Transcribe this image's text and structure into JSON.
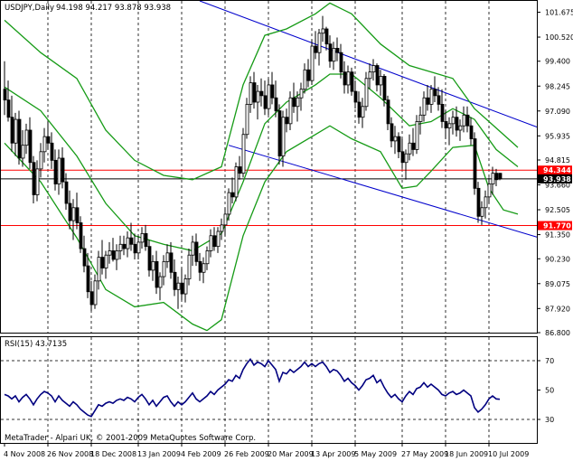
{
  "header": {
    "symbol_text": "USDJPY,Daily",
    "ohlc_text": "94.198 94.217 93.878 93.938"
  },
  "rsi_header": {
    "label": "RSI(15) 43.7135"
  },
  "footer": {
    "copyright": "MetaTrader - Alpari UK, © 2001-2009 MetaQuotes Software Corp."
  },
  "colors": {
    "background": "#ffffff",
    "candle": "#000000",
    "bollinger": "#169b16",
    "channel": "#0000cc",
    "horizontal_lines": "#ff0000",
    "current_price_line": "#000000",
    "rsi_line": "#000080",
    "price_label_red": "#ff0000",
    "price_label_black": "#000000",
    "grid": "#000000"
  },
  "chart_data": [
    {
      "type": "candlestick",
      "title": "USDJPY,Daily",
      "symbol": "USDJPY",
      "timeframe": "Daily",
      "ohlc_last": {
        "open": 94.198,
        "high": 94.217,
        "low": 93.878,
        "close": 93.938
      },
      "y_ticks": [
        "101.675",
        "100.520",
        "99.400",
        "98.245",
        "97.090",
        "95.935",
        "94.815",
        "93.660",
        "92.505",
        "91.350",
        "90.230",
        "89.075",
        "87.920",
        "86.800"
      ],
      "ylim": [
        86.8,
        102.2
      ],
      "x_ticks": [
        "4 Nov 2008",
        "26 Nov 2008",
        "18 Dec 2008",
        "13 Jan 2009",
        "4 Feb 2009",
        "26 Feb 2009",
        "20 Mar 2009",
        "13 Apr 2009",
        "5 May 2009",
        "27 May 2009",
        "18 Jun 2009",
        "10 Jul 2009"
      ],
      "candles": [
        [
          98.1,
          99.4,
          96.9,
          97.6
        ],
        [
          97.6,
          98.5,
          96.6,
          96.8
        ],
        [
          96.8,
          97.8,
          95.2,
          95.6
        ],
        [
          95.6,
          97.0,
          95.0,
          96.7
        ],
        [
          96.7,
          97.1,
          94.6,
          94.9
        ],
        [
          94.9,
          96.2,
          94.5,
          95.5
        ],
        [
          95.5,
          96.5,
          95.1,
          96.2
        ],
        [
          96.2,
          96.8,
          94.4,
          94.7
        ],
        [
          94.7,
          95.0,
          92.8,
          93.2
        ],
        [
          93.2,
          94.8,
          92.9,
          94.4
        ],
        [
          94.4,
          95.6,
          94.0,
          95.2
        ],
        [
          95.2,
          96.3,
          94.7,
          95.9
        ],
        [
          95.9,
          96.6,
          95.3,
          95.6
        ],
        [
          95.6,
          96.1,
          94.4,
          94.8
        ],
        [
          94.8,
          95.3,
          93.4,
          93.7
        ],
        [
          93.7,
          95.3,
          93.2,
          94.9
        ],
        [
          94.9,
          95.4,
          93.5,
          93.8
        ],
        [
          93.8,
          94.2,
          92.5,
          92.8
        ],
        [
          92.8,
          93.4,
          91.6,
          92.0
        ],
        [
          92.0,
          93.0,
          91.1,
          92.6
        ],
        [
          92.6,
          93.3,
          91.6,
          91.9
        ],
        [
          91.9,
          92.2,
          90.5,
          90.7
        ],
        [
          90.7,
          91.3,
          89.6,
          89.9
        ],
        [
          89.9,
          90.5,
          88.4,
          88.7
        ],
        [
          88.7,
          89.2,
          87.8,
          88.1
        ],
        [
          88.1,
          89.5,
          87.9,
          89.2
        ],
        [
          89.2,
          90.6,
          88.8,
          90.3
        ],
        [
          90.3,
          91.1,
          89.5,
          89.8
        ],
        [
          89.8,
          90.6,
          89.3,
          90.4
        ],
        [
          90.4,
          91.0,
          90.0,
          90.6
        ],
        [
          90.6,
          91.2,
          90.1,
          90.2
        ],
        [
          90.2,
          90.9,
          89.7,
          90.6
        ],
        [
          90.6,
          91.3,
          90.2,
          90.9
        ],
        [
          90.9,
          91.3,
          90.4,
          90.7
        ],
        [
          90.7,
          91.5,
          90.3,
          91.2
        ],
        [
          91.2,
          91.9,
          90.6,
          90.9
        ],
        [
          90.9,
          91.4,
          90.2,
          90.5
        ],
        [
          90.5,
          91.3,
          90.2,
          91.0
        ],
        [
          91.0,
          91.7,
          90.7,
          91.4
        ],
        [
          91.4,
          91.8,
          90.6,
          90.8
        ],
        [
          90.8,
          91.1,
          89.4,
          89.7
        ],
        [
          89.7,
          90.4,
          89.2,
          90.1
        ],
        [
          90.1,
          90.6,
          88.6,
          88.9
        ],
        [
          88.9,
          89.6,
          88.3,
          89.4
        ],
        [
          89.4,
          90.4,
          89.0,
          90.1
        ],
        [
          90.1,
          90.9,
          89.8,
          90.5
        ],
        [
          90.5,
          91.0,
          89.3,
          89.6
        ],
        [
          89.6,
          90.2,
          88.5,
          88.8
        ],
        [
          88.8,
          89.4,
          87.9,
          89.1
        ],
        [
          89.1,
          89.8,
          88.3,
          88.6
        ],
        [
          88.6,
          89.5,
          88.2,
          89.3
        ],
        [
          89.3,
          90.7,
          89.0,
          90.4
        ],
        [
          90.4,
          91.3,
          89.9,
          91.0
        ],
        [
          91.0,
          91.4,
          89.9,
          90.1
        ],
        [
          90.1,
          90.5,
          89.2,
          89.6
        ],
        [
          89.6,
          90.3,
          89.1,
          90.0
        ],
        [
          90.0,
          90.8,
          89.7,
          90.6
        ],
        [
          90.6,
          91.6,
          90.3,
          91.3
        ],
        [
          91.3,
          91.7,
          90.6,
          90.8
        ],
        [
          90.8,
          91.7,
          90.5,
          91.5
        ],
        [
          91.5,
          92.1,
          91.1,
          91.8
        ],
        [
          91.8,
          92.6,
          91.3,
          92.3
        ],
        [
          92.3,
          93.5,
          92.0,
          93.3
        ],
        [
          93.3,
          94.0,
          92.8,
          93.1
        ],
        [
          93.1,
          94.7,
          92.9,
          94.5
        ],
        [
          94.5,
          95.0,
          93.9,
          94.2
        ],
        [
          94.2,
          96.3,
          94.0,
          96.0
        ],
        [
          96.0,
          97.7,
          95.8,
          97.4
        ],
        [
          97.4,
          98.7,
          97.0,
          98.4
        ],
        [
          98.4,
          98.9,
          97.2,
          97.5
        ],
        [
          97.5,
          98.3,
          96.7,
          98.0
        ],
        [
          98.0,
          98.6,
          97.3,
          97.8
        ],
        [
          97.8,
          98.5,
          96.9,
          97.2
        ],
        [
          97.2,
          98.6,
          96.9,
          98.3
        ],
        [
          98.3,
          98.9,
          97.4,
          97.7
        ],
        [
          97.7,
          98.5,
          96.8,
          97.1
        ],
        [
          97.1,
          97.4,
          94.6,
          95.0
        ],
        [
          95.0,
          97.1,
          94.5,
          96.8
        ],
        [
          96.8,
          97.2,
          96.1,
          96.5
        ],
        [
          96.5,
          98.0,
          96.2,
          97.7
        ],
        [
          97.7,
          98.4,
          97.0,
          97.3
        ],
        [
          97.3,
          98.0,
          96.6,
          97.7
        ],
        [
          97.7,
          98.4,
          97.1,
          98.1
        ],
        [
          98.1,
          99.3,
          97.9,
          99.0
        ],
        [
          99.0,
          99.5,
          98.2,
          98.5
        ],
        [
          98.5,
          100.4,
          98.3,
          100.1
        ],
        [
          100.1,
          100.8,
          99.5,
          99.8
        ],
        [
          99.8,
          100.9,
          99.2,
          100.7
        ],
        [
          100.7,
          101.5,
          100.3,
          100.9
        ],
        [
          100.9,
          101.0,
          99.9,
          100.2
        ],
        [
          100.2,
          100.6,
          99.1,
          99.4
        ],
        [
          99.4,
          100.3,
          99.0,
          100.0
        ],
        [
          100.0,
          100.5,
          99.4,
          99.8
        ],
        [
          99.8,
          100.2,
          98.6,
          98.9
        ],
        [
          98.9,
          99.4,
          97.9,
          98.3
        ],
        [
          98.3,
          99.2,
          97.9,
          98.9
        ],
        [
          98.9,
          99.1,
          97.8,
          98.0
        ],
        [
          98.0,
          98.5,
          97.2,
          97.5
        ],
        [
          97.5,
          98.0,
          96.5,
          96.8
        ],
        [
          96.8,
          97.7,
          96.3,
          97.3
        ],
        [
          97.3,
          98.9,
          97.1,
          98.6
        ],
        [
          98.6,
          99.3,
          98.1,
          98.9
        ],
        [
          98.9,
          99.5,
          98.5,
          99.2
        ],
        [
          99.2,
          99.3,
          98.0,
          98.3
        ],
        [
          98.3,
          99.0,
          97.8,
          98.7
        ],
        [
          98.7,
          98.8,
          97.3,
          97.6
        ],
        [
          97.6,
          97.8,
          96.2,
          96.5
        ],
        [
          96.5,
          96.8,
          95.4,
          95.7
        ],
        [
          95.7,
          96.4,
          95.1,
          95.9
        ],
        [
          95.9,
          96.1,
          94.9,
          95.2
        ],
        [
          95.2,
          95.8,
          94.4,
          94.7
        ],
        [
          94.7,
          95.3,
          93.9,
          95.1
        ],
        [
          95.1,
          96.0,
          94.8,
          95.6
        ],
        [
          95.6,
          96.3,
          95.0,
          95.3
        ],
        [
          95.3,
          96.9,
          95.1,
          96.6
        ],
        [
          96.6,
          97.3,
          96.0,
          96.9
        ],
        [
          96.9,
          98.0,
          96.6,
          97.7
        ],
        [
          97.7,
          98.3,
          97.1,
          97.4
        ],
        [
          97.4,
          98.3,
          97.0,
          98.1
        ],
        [
          98.1,
          98.7,
          97.5,
          97.8
        ],
        [
          97.8,
          98.2,
          97.1,
          97.4
        ],
        [
          97.4,
          98.1,
          96.3,
          96.6
        ],
        [
          96.6,
          97.1,
          95.8,
          96.3
        ],
        [
          96.3,
          96.8,
          95.5,
          96.5
        ],
        [
          96.5,
          97.1,
          96.0,
          96.8
        ],
        [
          96.8,
          97.3,
          95.9,
          96.2
        ],
        [
          96.2,
          96.7,
          95.7,
          96.4
        ],
        [
          96.4,
          97.3,
          96.1,
          96.9
        ],
        [
          96.9,
          97.3,
          96.1,
          96.4
        ],
        [
          96.4,
          96.8,
          95.5,
          95.8
        ],
        [
          95.8,
          96.1,
          93.2,
          93.5
        ],
        [
          93.5,
          93.8,
          91.9,
          92.2
        ],
        [
          92.2,
          92.9,
          91.8,
          92.6
        ],
        [
          92.6,
          93.4,
          92.1,
          93.1
        ],
        [
          93.1,
          94.0,
          92.8,
          93.7
        ],
        [
          93.7,
          94.5,
          93.2,
          94.2
        ],
        [
          94.2,
          94.4,
          93.6,
          93.9
        ],
        [
          94.198,
          94.217,
          93.878,
          93.938
        ]
      ],
      "bollinger_upper": [
        [
          0,
          101.3
        ],
        [
          10,
          99.8
        ],
        [
          20,
          98.6
        ],
        [
          28,
          96.2
        ],
        [
          36,
          94.8
        ],
        [
          44,
          94.1
        ],
        [
          52,
          93.9
        ],
        [
          60,
          94.5
        ],
        [
          66,
          98.3
        ],
        [
          72,
          100.6
        ],
        [
          78,
          100.9
        ],
        [
          86,
          101.6
        ],
        [
          90,
          102.1
        ],
        [
          96,
          101.6
        ],
        [
          104,
          100.2
        ],
        [
          112,
          99.2
        ],
        [
          118,
          98.9
        ],
        [
          124,
          98.6
        ],
        [
          130,
          97.2
        ],
        [
          136,
          96.3
        ],
        [
          142,
          95.4
        ]
      ],
      "bollinger_middle": [
        [
          0,
          98.2
        ],
        [
          10,
          97.1
        ],
        [
          20,
          95.0
        ],
        [
          28,
          92.8
        ],
        [
          36,
          91.3
        ],
        [
          44,
          90.9
        ],
        [
          52,
          90.6
        ],
        [
          60,
          91.4
        ],
        [
          66,
          93.8
        ],
        [
          72,
          96.5
        ],
        [
          78,
          97.5
        ],
        [
          86,
          98.3
        ],
        [
          90,
          98.8
        ],
        [
          96,
          98.8
        ],
        [
          104,
          97.7
        ],
        [
          112,
          96.4
        ],
        [
          118,
          96.6
        ],
        [
          124,
          97.2
        ],
        [
          130,
          96.7
        ],
        [
          136,
          95.3
        ],
        [
          142,
          94.5
        ]
      ],
      "bollinger_lower": [
        [
          0,
          95.6
        ],
        [
          10,
          93.8
        ],
        [
          20,
          91.2
        ],
        [
          28,
          88.8
        ],
        [
          36,
          88.0
        ],
        [
          44,
          88.2
        ],
        [
          52,
          87.2
        ],
        [
          56,
          86.9
        ],
        [
          60,
          87.4
        ],
        [
          66,
          91.3
        ],
        [
          72,
          93.8
        ],
        [
          78,
          95.2
        ],
        [
          86,
          96.0
        ],
        [
          90,
          96.4
        ],
        [
          96,
          95.8
        ],
        [
          104,
          95.2
        ],
        [
          110,
          93.5
        ],
        [
          114,
          93.6
        ],
        [
          118,
          94.3
        ],
        [
          124,
          95.4
        ],
        [
          130,
          95.5
        ],
        [
          134,
          93.5
        ],
        [
          138,
          92.5
        ],
        [
          142,
          92.3
        ]
      ],
      "channel_lines": [
        {
          "from": [
            54,
            102.2
          ],
          "to": [
            144,
            96.55
          ]
        },
        {
          "from": [
            62,
            95.5
          ],
          "to": [
            144,
            91.4
          ]
        }
      ],
      "horizontal_levels": [
        {
          "value": 94.344,
          "label": "94.344",
          "color": "#ff0000"
        },
        {
          "value": 91.77,
          "label": "91.770",
          "color": "#ff0000"
        },
        {
          "value": 93.938,
          "label": "93.938",
          "color": "#000000"
        }
      ]
    },
    {
      "type": "line",
      "title": "RSI(15) 43.7135",
      "y_ticks": [
        "70",
        "50",
        "30"
      ],
      "ylim": [
        14,
        86
      ],
      "reference_levels": [
        70,
        30
      ],
      "values": [
        47,
        46,
        44,
        46,
        42,
        45,
        47,
        44,
        40,
        44,
        47,
        49,
        48,
        46,
        42,
        46,
        43,
        41,
        39,
        42,
        40,
        37,
        35,
        33,
        32,
        36,
        40,
        39,
        41,
        42,
        41,
        43,
        44,
        43,
        45,
        44,
        42,
        45,
        47,
        44,
        40,
        43,
        39,
        42,
        45,
        46,
        42,
        39,
        42,
        40,
        42,
        45,
        48,
        44,
        42,
        44,
        46,
        49,
        47,
        50,
        52,
        54,
        57,
        56,
        60,
        58,
        64,
        68,
        71,
        67,
        69,
        68,
        66,
        70,
        67,
        64,
        56,
        62,
        61,
        64,
        62,
        64,
        66,
        69,
        66,
        68,
        66,
        68,
        69,
        66,
        62,
        64,
        63,
        60,
        56,
        58,
        55,
        53,
        50,
        53,
        57,
        58,
        60,
        55,
        57,
        52,
        48,
        45,
        47,
        44,
        42,
        46,
        49,
        47,
        51,
        52,
        55,
        52,
        54,
        52,
        50,
        47,
        46,
        48,
        49,
        47,
        48,
        50,
        48,
        46,
        38,
        35,
        37,
        40,
        44,
        46,
        44,
        43.7
      ]
    }
  ]
}
